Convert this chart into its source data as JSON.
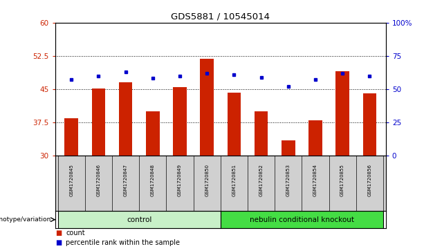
{
  "title": "GDS5881 / 10545014",
  "samples": [
    "GSM1720845",
    "GSM1720846",
    "GSM1720847",
    "GSM1720848",
    "GSM1720849",
    "GSM1720850",
    "GSM1720851",
    "GSM1720852",
    "GSM1720853",
    "GSM1720854",
    "GSM1720855",
    "GSM1720856"
  ],
  "bar_values": [
    38.5,
    45.2,
    46.5,
    40.0,
    45.5,
    51.8,
    44.2,
    40.0,
    33.5,
    38.0,
    49.0,
    44.0
  ],
  "bar_color": "#cc2200",
  "dot_color": "#0000cc",
  "ylim_left": [
    30,
    60
  ],
  "ylim_right": [
    0,
    100
  ],
  "yticks_left": [
    30,
    37.5,
    45,
    52.5,
    60
  ],
  "yticks_right": [
    0,
    25,
    50,
    75,
    100
  ],
  "ytick_labels_left": [
    "30",
    "37.5",
    "45",
    "52.5",
    "60"
  ],
  "ytick_labels_right": [
    "0",
    "25",
    "50",
    "75",
    "100%"
  ],
  "hlines": [
    37.5,
    45.0,
    52.5
  ],
  "control_label": "control",
  "knockout_label": "nebulin conditional knockout",
  "genotype_label": "genotype/variation",
  "control_color": "#c8f0c8",
  "knockout_color": "#44dd44",
  "bar_bottom": 30,
  "legend_count": "count",
  "legend_pct": "percentile rank within the sample",
  "left_axis_color": "#cc2200",
  "right_axis_color": "#0000cc",
  "sample_bg_color": "#d0d0d0",
  "dot_right_pct": [
    57,
    60,
    63,
    58,
    60,
    62,
    61,
    59,
    52,
    57,
    62,
    60
  ]
}
